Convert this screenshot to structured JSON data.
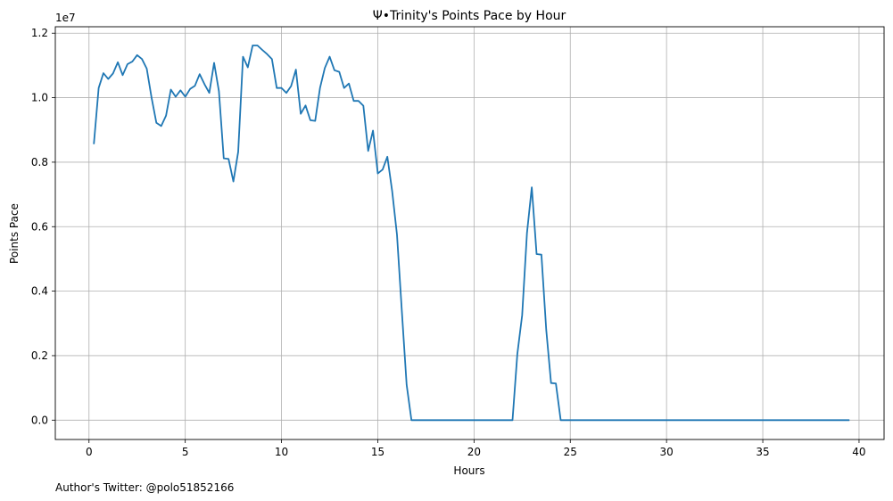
{
  "chart_data": {
    "type": "line",
    "title": "Ψ•Trinity's Points Pace by Hour",
    "xlabel": "Hours",
    "ylabel": "Points Pace",
    "y_scale_label": "1e7",
    "footer": "Author's Twitter: @polo51852166",
    "xlim": [
      -1.75,
      41.3
    ],
    "ylim": [
      -0.06,
      1.22
    ],
    "x_ticks": [
      0,
      5,
      10,
      15,
      20,
      25,
      30,
      35,
      40
    ],
    "y_ticks": [
      0.0,
      0.2,
      0.4,
      0.6,
      0.8,
      1.0,
      1.2
    ],
    "x_tick_labels": [
      "0",
      "5",
      "10",
      "15",
      "20",
      "25",
      "30",
      "35",
      "40"
    ],
    "y_tick_labels": [
      "0.0",
      "0.2",
      "0.4",
      "0.6",
      "0.8",
      "1.0",
      "1.2"
    ],
    "grid": true,
    "line_color": "#1f77b4",
    "series": [
      {
        "x": [
          0.25,
          0.5,
          0.75,
          1.0,
          1.25,
          1.5,
          1.75,
          2.0,
          2.25,
          2.5,
          2.75,
          3.0,
          3.25,
          3.5,
          3.75,
          4.0,
          4.25,
          4.5,
          4.75,
          5.0,
          5.25,
          5.5,
          5.75,
          6.0,
          6.25,
          6.5,
          6.75,
          7.0,
          7.25,
          7.5,
          7.75,
          8.0,
          8.25,
          8.5,
          8.75,
          9.0,
          9.25,
          9.5,
          9.75,
          10.0,
          10.25,
          10.5,
          10.75,
          11.0,
          11.25,
          11.5,
          11.75,
          12.0,
          12.25,
          12.5,
          12.75,
          13.0,
          13.25,
          13.5,
          13.75,
          14.0,
          14.25,
          14.5,
          14.75,
          15.0,
          15.25,
          15.5,
          15.75,
          16.0,
          16.25,
          16.5,
          16.75,
          17.0,
          22.0,
          22.25,
          22.5,
          22.75,
          23.0,
          23.25,
          23.5,
          23.75,
          24.0,
          24.25,
          24.5,
          39.5
        ],
        "values": [
          0.856,
          1.03,
          1.076,
          1.058,
          1.075,
          1.11,
          1.07,
          1.104,
          1.112,
          1.132,
          1.12,
          1.09,
          1.0,
          0.922,
          0.912,
          0.944,
          1.025,
          1.003,
          1.023,
          1.003,
          1.027,
          1.037,
          1.073,
          1.042,
          1.015,
          1.108,
          1.02,
          0.812,
          0.81,
          0.74,
          0.832,
          1.127,
          1.094,
          1.162,
          1.162,
          1.148,
          1.135,
          1.12,
          1.03,
          1.03,
          1.015,
          1.036,
          1.087,
          0.95,
          0.976,
          0.93,
          0.928,
          1.03,
          1.092,
          1.127,
          1.085,
          1.08,
          1.03,
          1.044,
          0.99,
          0.99,
          0.975,
          0.835,
          0.898,
          0.765,
          0.777,
          0.817,
          0.71,
          0.575,
          0.34,
          0.11,
          0.0,
          0.0,
          0.0,
          0.205,
          0.325,
          0.58,
          0.722,
          0.515,
          0.513,
          0.28,
          0.115,
          0.114,
          0.0,
          0.0
        ]
      }
    ]
  }
}
